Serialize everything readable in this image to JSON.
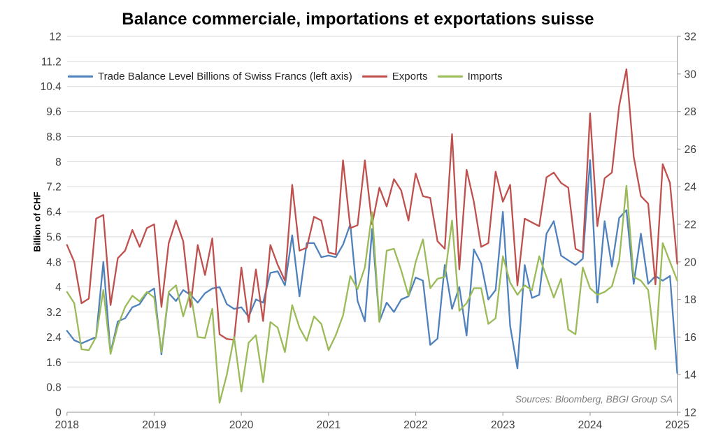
{
  "title": "Balance commerciale, importations et exportations suisse",
  "y_axis_title": "Billion of CHF",
  "source_note": "Sources: Bloomberg, BBGI Group SA",
  "colors": {
    "trade_balance": "#4F81BD",
    "exports": "#C0504D",
    "imports": "#9BBB59",
    "gridline": "#D9D9D9",
    "axis_line": "#A6A6A6",
    "tick_label": "#3F3F3F"
  },
  "chart_data": {
    "type": "line",
    "x_monthly_start": "2018-01",
    "x_monthly_end": "2025-01",
    "x_tick_years": [
      2018,
      2019,
      2020,
      2021,
      2022,
      2023,
      2024,
      2025
    ],
    "left_axis": {
      "label": "Billion of CHF",
      "min": 0,
      "max": 12,
      "ticks": [
        0,
        0.8,
        1.6,
        2.4,
        3.2,
        4,
        4.8,
        5.6,
        6.4,
        7.2,
        8,
        8.8,
        9.6,
        10.4,
        11.2,
        12
      ]
    },
    "right_axis": {
      "min": 12,
      "max": 32,
      "ticks": [
        12,
        14,
        16,
        18,
        20,
        22,
        24,
        26,
        28,
        30,
        32
      ]
    },
    "grid": true,
    "legend_position": "top-left-inside",
    "series": [
      {
        "name": "Trade Balance Level Billions of Swiss Francs (left axis)",
        "axis": "left",
        "color": "#4F81BD",
        "values": [
          2.6,
          2.3,
          2.2,
          2.3,
          2.4,
          4.8,
          1.9,
          2.9,
          3.0,
          3.35,
          3.45,
          3.8,
          3.95,
          1.85,
          3.8,
          3.55,
          3.9,
          3.75,
          3.5,
          3.8,
          3.95,
          4.0,
          3.45,
          3.3,
          3.35,
          3.05,
          3.6,
          3.5,
          4.45,
          4.5,
          4.05,
          5.65,
          3.7,
          5.4,
          5.4,
          4.95,
          5.0,
          4.95,
          5.35,
          6.0,
          3.55,
          2.9,
          5.85,
          2.9,
          3.5,
          3.2,
          3.6,
          3.7,
          4.3,
          4.2,
          2.15,
          2.35,
          4.7,
          3.3,
          4.0,
          2.45,
          5.2,
          4.75,
          3.6,
          3.9,
          6.4,
          2.75,
          1.4,
          4.7,
          3.65,
          3.75,
          5.7,
          6.1,
          5.0,
          4.85,
          4.7,
          4.9,
          8.05,
          3.5,
          6.1,
          4.65,
          6.2,
          6.45,
          4.1,
          5.7,
          4.1,
          4.35,
          4.2,
          4.35,
          1.25
        ]
      },
      {
        "name": "Exports",
        "axis": "right",
        "color": "#C0504D",
        "values": [
          20.9,
          20.0,
          17.8,
          18.05,
          22.3,
          22.5,
          17.7,
          20.2,
          20.6,
          21.7,
          20.8,
          21.8,
          22.0,
          17.6,
          21.0,
          22.2,
          21.1,
          17.6,
          20.9,
          19.3,
          21.25,
          16.15,
          15.9,
          15.85,
          19.7,
          16.8,
          19.6,
          16.85,
          20.9,
          19.85,
          19.0,
          24.1,
          20.6,
          20.75,
          22.4,
          22.2,
          20.5,
          20.4,
          25.4,
          21.8,
          21.95,
          25.4,
          22.0,
          23.95,
          22.95,
          24.4,
          23.8,
          22.2,
          24.7,
          23.5,
          23.4,
          21.1,
          20.7,
          26.8,
          19.6,
          24.9,
          23.2,
          20.8,
          21.0,
          24.8,
          23.2,
          24.1,
          18.75,
          22.3,
          22.1,
          21.9,
          24.5,
          24.75,
          24.2,
          23.95,
          20.7,
          20.5,
          27.9,
          21.9,
          24.45,
          24.75,
          28.3,
          30.25,
          25.6,
          23.5,
          23.1,
          18.8,
          25.2,
          24.2,
          19.9
        ]
      },
      {
        "name": "Imports",
        "axis": "right",
        "color": "#9BBB59",
        "values": [
          18.4,
          17.8,
          15.35,
          15.3,
          16.0,
          18.5,
          15.1,
          16.6,
          17.6,
          18.2,
          17.9,
          18.4,
          18.1,
          15.2,
          18.4,
          18.75,
          17.1,
          18.4,
          16.0,
          15.95,
          17.5,
          12.5,
          14.0,
          16.0,
          13.1,
          15.7,
          16.1,
          13.6,
          16.8,
          16.5,
          15.2,
          17.7,
          16.5,
          15.8,
          17.1,
          16.7,
          15.3,
          16.1,
          17.15,
          19.25,
          18.55,
          19.7,
          22.65,
          16.8,
          20.6,
          20.7,
          19.55,
          18.2,
          20.0,
          21.2,
          18.6,
          19.1,
          19.2,
          22.2,
          17.4,
          17.8,
          18.6,
          18.6,
          16.7,
          17.0,
          20.3,
          18.9,
          18.25,
          18.75,
          18.5,
          20.3,
          19.2,
          18.1,
          19.1,
          16.4,
          16.15,
          19.7,
          18.6,
          18.25,
          18.4,
          18.7,
          20.05,
          24.05,
          19.2,
          19.0,
          18.5,
          15.35,
          21.0,
          20.0,
          19.0
        ]
      }
    ]
  }
}
